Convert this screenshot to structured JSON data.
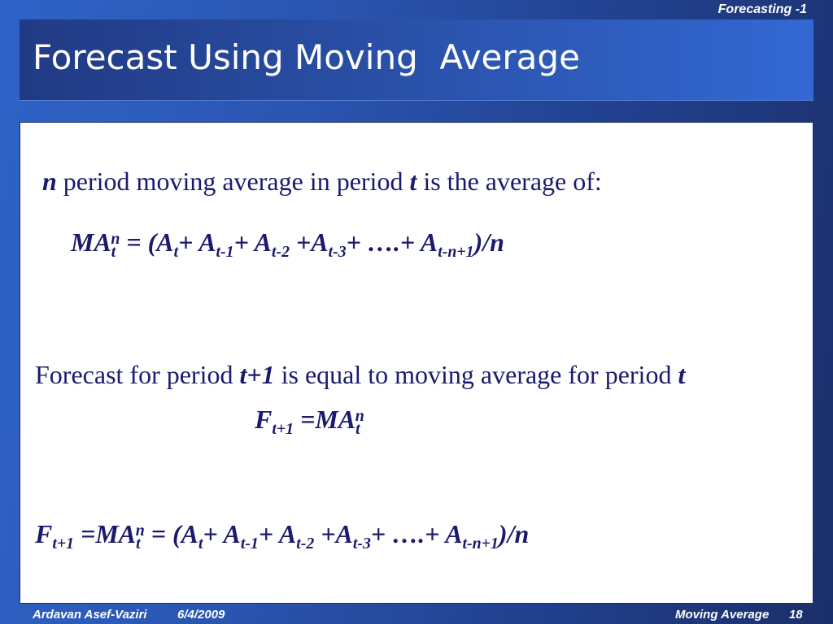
{
  "header": {
    "section_label": "Forecasting -1"
  },
  "slide": {
    "title": "Forecast Using Moving  Average",
    "line1": {
      "var_n": "n",
      "text_a": " period moving average in period ",
      "var_t": "t",
      "text_b": " is the average of:"
    },
    "formula1": {
      "ma": "MA",
      "ma_sub": "t",
      "ma_sup": "n",
      "eq": " = (",
      "a1": "A",
      "a1_sub": "t",
      "p1": "+ ",
      "a2": "A",
      "a2_sub": "t-1",
      "p2": "+ ",
      "a3": "A",
      "a3_sub": "t-2",
      "p3": " +",
      "a4": "A",
      "a4_sub": "t-3",
      "p4": "+ ….+ ",
      "a5": "A",
      "a5_sub": "t-n+1",
      "end": ")/n"
    },
    "line2": {
      "text_a": "Forecast for period ",
      "var_t1": "t+1",
      "text_b": " is equal to moving average for period ",
      "var_t": "t"
    },
    "formula2": {
      "f": "F",
      "f_sub": "t+1",
      "eq": " =MA",
      "ma_sub": "t",
      "ma_sup": "n"
    },
    "formula3": {
      "f": "F",
      "f_sub": "t+1",
      "eq": " =MA",
      "ma_sub": "t",
      "ma_sup": "n",
      "eq2": " = (",
      "a1": "A",
      "a1_sub": "t",
      "p1": "+ ",
      "a2": "A",
      "a2_sub": "t-1",
      "p2": "+ ",
      "a3": "A",
      "a3_sub": "t-2",
      "p3": " +",
      "a4": "A",
      "a4_sub": "t-3",
      "p4": "+ ….+ ",
      "a5": "A",
      "a5_sub": "t-n+1",
      "end": ")/n"
    }
  },
  "footer": {
    "author": "Ardavan Asef-Vaziri",
    "date": "6/4/2009",
    "topic": "Moving Average",
    "page_number": "18"
  }
}
